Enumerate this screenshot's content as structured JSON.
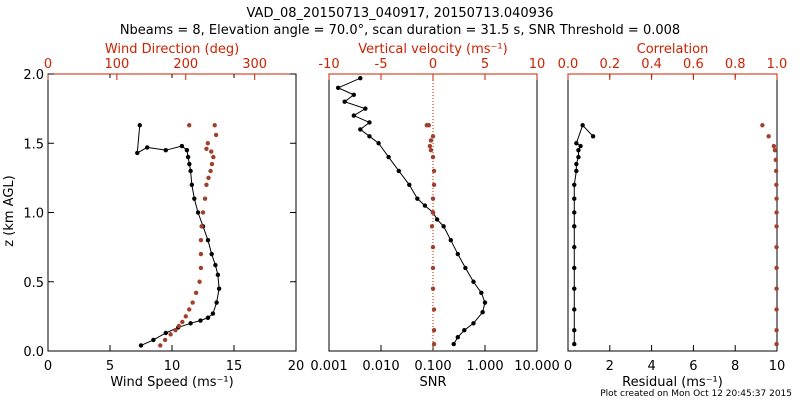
{
  "title_line1": "VAD_08_20150713_040917, 20150713.040936",
  "title_line2": "Nbeams = 8, Elevation angle = 70.0°, scan duration = 31.5 s, SNR Threshold = 0.008",
  "footer": "Plot created on Mon Oct 12 20:45:37 2015",
  "colors": {
    "primary": "#000000",
    "secondary": "#cc2200",
    "secondary_marker": "#a0402a"
  },
  "chart_data": [
    {
      "type": "line",
      "name": "wind",
      "ylabel": "z (km AGL)",
      "ylim": [
        0,
        2.0
      ],
      "yticks": [
        "0.0",
        "0.5",
        "1.0",
        "1.5",
        "2.0"
      ],
      "bottom_axis": {
        "label": "Wind Speed (ms⁻¹)",
        "xlim": [
          0,
          20
        ],
        "ticks": [
          "0",
          "5",
          "10",
          "15",
          "20"
        ]
      },
      "top_axis": {
        "label": "Wind Direction (deg)",
        "xlim": [
          0,
          360
        ],
        "ticks": [
          "0",
          "100",
          "200",
          "300"
        ]
      },
      "series": [
        {
          "axis": "bottom",
          "color": "black",
          "x": [
            7.5,
            8.5,
            9.5,
            10.5,
            11.5,
            12.3,
            12.9,
            13.3,
            13.6,
            13.8,
            13.7,
            13.5,
            13.2,
            12.9,
            12.5,
            12.1,
            11.8,
            11.6,
            11.5,
            11.4,
            11.3,
            11.2,
            10.8,
            9.5,
            8.0,
            7.2,
            7.4
          ],
          "y": [
            0.04,
            0.08,
            0.13,
            0.17,
            0.2,
            0.22,
            0.24,
            0.27,
            0.35,
            0.45,
            0.55,
            0.62,
            0.7,
            0.8,
            0.9,
            1.0,
            1.1,
            1.2,
            1.3,
            1.35,
            1.4,
            1.45,
            1.48,
            1.45,
            1.47,
            1.43,
            1.63
          ]
        },
        {
          "axis": "top",
          "color": "red",
          "x": [
            163,
            170,
            178,
            185,
            190,
            195,
            200,
            205,
            210,
            215,
            220,
            222,
            222,
            222,
            223,
            225,
            228,
            230,
            233,
            236,
            238,
            240,
            237,
            230,
            232,
            244,
            205,
            242
          ],
          "y": [
            0.04,
            0.08,
            0.12,
            0.15,
            0.18,
            0.21,
            0.25,
            0.3,
            0.35,
            0.42,
            0.5,
            0.6,
            0.7,
            0.8,
            0.9,
            1.0,
            1.1,
            1.2,
            1.25,
            1.3,
            1.35,
            1.4,
            1.44,
            1.46,
            1.5,
            1.56,
            1.63,
            1.63
          ]
        }
      ]
    },
    {
      "type": "line",
      "name": "velocity",
      "bottom_axis": {
        "label": "SNR",
        "scale": "log",
        "xlim": [
          0.001,
          10
        ],
        "ticks": [
          "0.001",
          "0.010",
          "0.100",
          "1.000",
          "10.000"
        ]
      },
      "top_axis": {
        "label": "Vertical velocity (ms⁻¹)",
        "xlim": [
          -10,
          10
        ],
        "ticks": [
          "-10",
          "-5",
          "0",
          "5",
          "10"
        ],
        "zero_line": true
      },
      "series": [
        {
          "axis": "bottom",
          "color": "black",
          "x": [
            0.25,
            0.3,
            0.4,
            0.6,
            0.9,
            1.0,
            0.85,
            0.6,
            0.42,
            0.3,
            0.22,
            0.16,
            0.12,
            0.1,
            0.07,
            0.05,
            0.035,
            0.022,
            0.014,
            0.009,
            0.006,
            0.004,
            0.006,
            0.003,
            0.005,
            0.002,
            0.003,
            0.0015,
            0.004
          ],
          "y": [
            0.05,
            0.1,
            0.15,
            0.2,
            0.28,
            0.35,
            0.42,
            0.5,
            0.6,
            0.7,
            0.8,
            0.9,
            0.95,
            1.0,
            1.05,
            1.1,
            1.2,
            1.3,
            1.4,
            1.5,
            1.55,
            1.6,
            1.65,
            1.7,
            1.75,
            1.8,
            1.85,
            1.9,
            1.97
          ]
        },
        {
          "axis": "top",
          "color": "red",
          "x": [
            0.1,
            0.1,
            0.1,
            0.0,
            0.0,
            0.0,
            -0.1,
            0.0,
            0.0,
            0.1,
            0.1,
            0.0,
            -0.2,
            -0.3,
            -0.2,
            0.0,
            -0.4,
            -0.6
          ],
          "y": [
            0.05,
            0.15,
            0.3,
            0.45,
            0.6,
            0.75,
            0.9,
            1.0,
            1.1,
            1.2,
            1.3,
            1.4,
            1.45,
            1.48,
            1.52,
            1.55,
            1.63,
            1.63
          ]
        }
      ]
    },
    {
      "type": "line",
      "name": "residual",
      "bottom_axis": {
        "label": "Residual (ms⁻¹)",
        "xlim": [
          0,
          10
        ],
        "ticks": [
          "0",
          "2",
          "4",
          "6",
          "8",
          "10"
        ]
      },
      "top_axis": {
        "label": "Correlation",
        "xlim": [
          0,
          1.0
        ],
        "ticks": [
          "0.0",
          "0.2",
          "0.4",
          "0.6",
          "0.8",
          "1.0"
        ]
      },
      "series": [
        {
          "axis": "bottom",
          "color": "black",
          "x": [
            0.3,
            0.3,
            0.3,
            0.3,
            0.3,
            0.3,
            0.3,
            0.3,
            0.3,
            0.3,
            0.4,
            0.4,
            0.5,
            0.5,
            0.6,
            0.4,
            0.7,
            1.2
          ],
          "y": [
            0.05,
            0.15,
            0.3,
            0.45,
            0.6,
            0.75,
            0.9,
            1.0,
            1.1,
            1.2,
            1.3,
            1.35,
            1.4,
            1.45,
            1.48,
            1.5,
            1.63,
            1.55
          ]
        },
        {
          "axis": "top",
          "color": "red",
          "x": [
            0.998,
            0.998,
            0.998,
            0.998,
            0.998,
            0.998,
            0.998,
            0.998,
            0.998,
            0.997,
            0.996,
            0.994,
            0.99,
            0.985,
            0.93,
            0.96
          ],
          "y": [
            0.05,
            0.15,
            0.3,
            0.45,
            0.6,
            0.75,
            0.9,
            1.0,
            1.1,
            1.2,
            1.3,
            1.38,
            1.45,
            1.48,
            1.63,
            1.55
          ]
        }
      ]
    }
  ]
}
